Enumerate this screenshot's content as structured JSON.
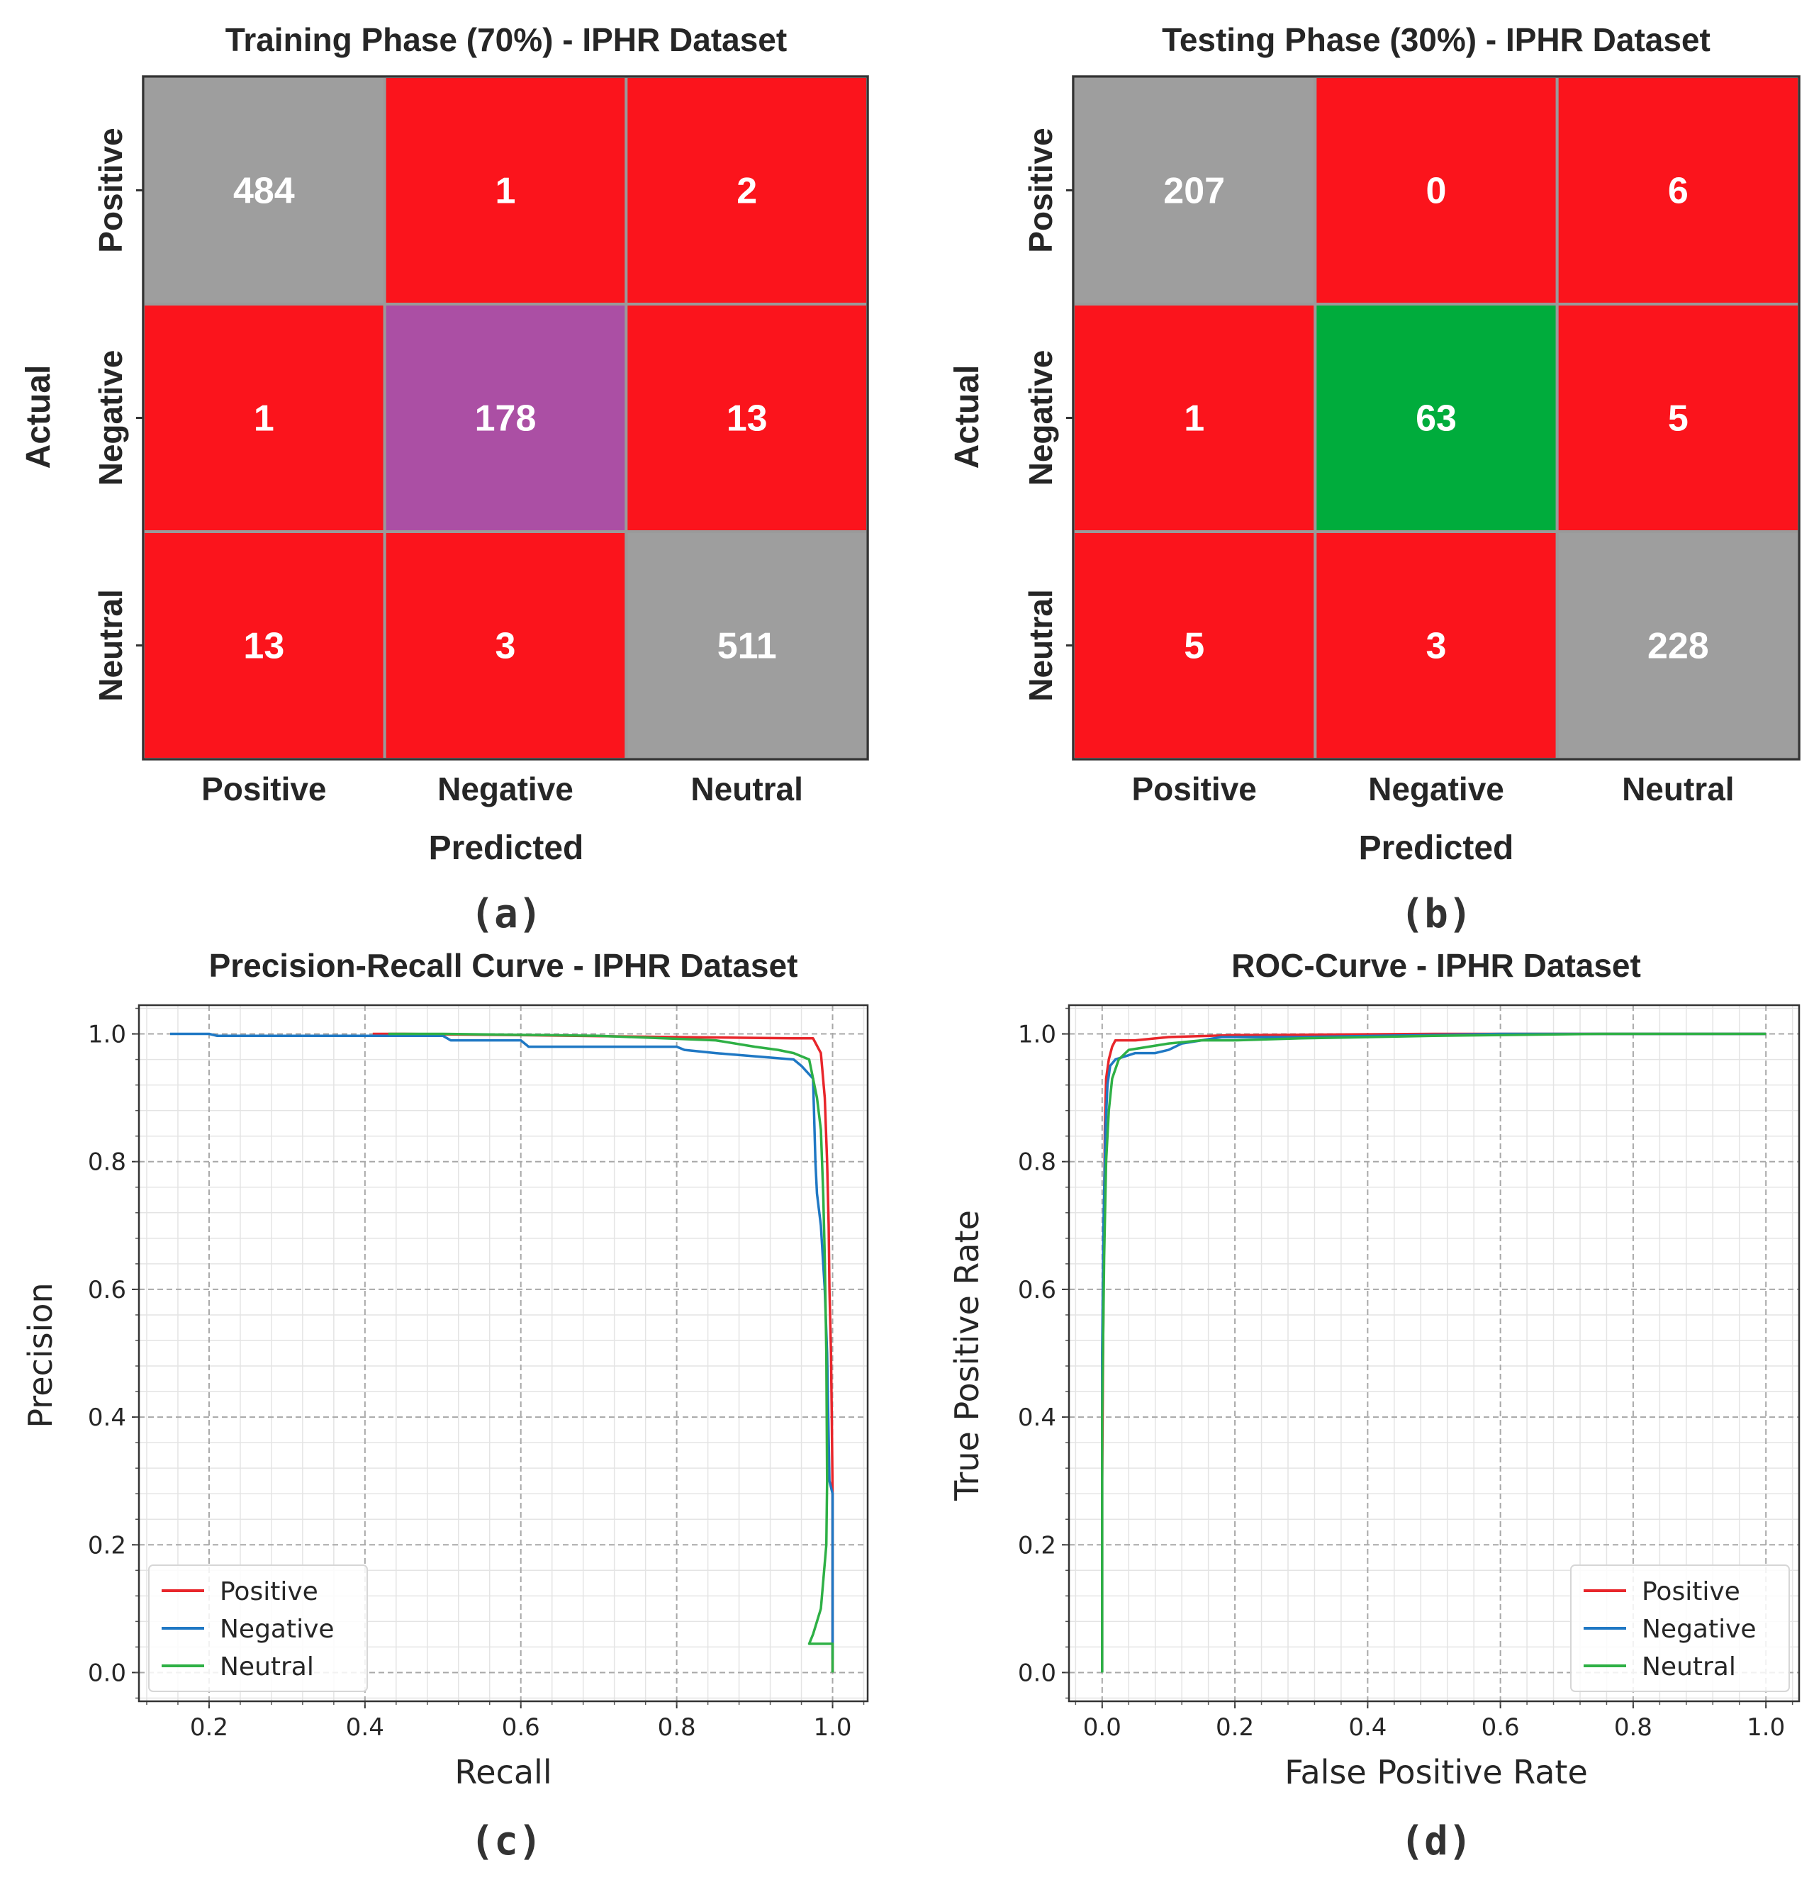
{
  "chart_data": [
    {
      "type": "heatmap",
      "panel_label": "(a)",
      "title": "Training Phase (70%) - IPHR Dataset",
      "xlabel": "Predicted",
      "ylabel": "Actual",
      "x_categories": [
        "Positive",
        "Negative",
        "Neutral"
      ],
      "y_categories": [
        "Positive",
        "Negative",
        "Neutral"
      ],
      "values": [
        [
          484,
          1,
          2
        ],
        [
          1,
          178,
          13
        ],
        [
          13,
          3,
          511
        ]
      ],
      "colors": [
        [
          "#9e9e9e",
          "#fb141c",
          "#fb141c"
        ],
        [
          "#fb141c",
          "#ab4fa4",
          "#fb141c"
        ],
        [
          "#fb141c",
          "#fb141c",
          "#9e9e9e"
        ]
      ]
    },
    {
      "type": "heatmap",
      "panel_label": "(b)",
      "title": "Testing Phase (30%) - IPHR Dataset",
      "xlabel": "Predicted",
      "ylabel": "Actual",
      "x_categories": [
        "Positive",
        "Negative",
        "Neutral"
      ],
      "y_categories": [
        "Positive",
        "Negative",
        "Neutral"
      ],
      "values": [
        [
          207,
          0,
          6
        ],
        [
          1,
          63,
          5
        ],
        [
          5,
          3,
          228
        ]
      ],
      "colors": [
        [
          "#9e9e9e",
          "#fb141c",
          "#fb141c"
        ],
        [
          "#fb141c",
          "#00ac3c",
          "#fb141c"
        ],
        [
          "#fb141c",
          "#fb141c",
          "#9e9e9e"
        ]
      ]
    },
    {
      "type": "line",
      "panel_label": "(c)",
      "title": "Precision-Recall Curve - IPHR Dataset",
      "xlabel": "Recall",
      "ylabel": "Precision",
      "xlim": [
        0.11,
        1.045
      ],
      "ylim": [
        -0.045,
        1.045
      ],
      "xticks": [
        "0.2",
        "0.4",
        "0.6",
        "0.8",
        "1.0"
      ],
      "yticks": [
        "0.0",
        "0.2",
        "0.4",
        "0.6",
        "0.8",
        "1.0"
      ],
      "grid": true,
      "legend": "lower left",
      "series": [
        {
          "name": "Positive",
          "color": "#e8262b",
          "x": [
            0.41,
            0.45,
            0.6,
            0.8,
            0.95,
            0.975,
            0.985,
            0.99,
            0.993,
            0.995,
            0.996,
            0.998,
            0.999,
            1.0,
            1.0,
            1.0
          ],
          "y": [
            1.0,
            1.0,
            0.998,
            0.995,
            0.993,
            0.993,
            0.97,
            0.9,
            0.8,
            0.7,
            0.6,
            0.5,
            0.4,
            0.28,
            0.03,
            0.0
          ]
        },
        {
          "name": "Negative",
          "color": "#1f78c4",
          "x": [
            0.15,
            0.2,
            0.21,
            0.5,
            0.51,
            0.6,
            0.61,
            0.8,
            0.81,
            0.85,
            0.9,
            0.95,
            0.96,
            0.975,
            0.978,
            0.98,
            0.985,
            0.99,
            0.993,
            0.996,
            1.0,
            1.0
          ],
          "y": [
            1.0,
            1.0,
            0.997,
            0.997,
            0.99,
            0.99,
            0.98,
            0.98,
            0.975,
            0.97,
            0.965,
            0.96,
            0.95,
            0.93,
            0.8,
            0.75,
            0.7,
            0.6,
            0.5,
            0.3,
            0.28,
            0.02
          ]
        },
        {
          "name": "Neutral",
          "color": "#2eb045",
          "x": [
            0.43,
            0.5,
            0.7,
            0.85,
            0.9,
            0.93,
            0.95,
            0.97,
            0.98,
            0.985,
            0.988,
            0.99,
            0.992,
            0.993,
            0.992,
            0.985,
            0.975,
            0.97,
            1.0,
            1.0
          ],
          "y": [
            1.0,
            1.0,
            0.997,
            0.99,
            0.98,
            0.975,
            0.97,
            0.96,
            0.9,
            0.85,
            0.75,
            0.65,
            0.5,
            0.3,
            0.2,
            0.1,
            0.06,
            0.045,
            0.045,
            0.0
          ]
        }
      ]
    },
    {
      "type": "line",
      "panel_label": "(d)",
      "title": "ROC-Curve - IPHR Dataset",
      "xlabel": "False Positive Rate",
      "ylabel": "True Positive Rate",
      "xlim": [
        -0.05,
        1.05
      ],
      "ylim": [
        -0.045,
        1.045
      ],
      "xticks": [
        "0.0",
        "0.2",
        "0.4",
        "0.6",
        "0.8",
        "1.0"
      ],
      "yticks": [
        "0.0",
        "0.2",
        "0.4",
        "0.6",
        "0.8",
        "1.0"
      ],
      "grid": true,
      "legend": "lower right",
      "series": [
        {
          "name": "Positive",
          "color": "#e8262b",
          "x": [
            0.0,
            0.0,
            0.002,
            0.004,
            0.006,
            0.01,
            0.015,
            0.02,
            0.05,
            0.1,
            0.2,
            0.5,
            1.0
          ],
          "y": [
            0.0,
            0.3,
            0.6,
            0.85,
            0.93,
            0.96,
            0.98,
            0.99,
            0.99,
            0.995,
            0.998,
            1.0,
            1.0
          ]
        },
        {
          "name": "Negative",
          "color": "#1f78c4",
          "x": [
            0.0,
            0.0,
            0.002,
            0.005,
            0.008,
            0.012,
            0.02,
            0.05,
            0.08,
            0.1,
            0.12,
            0.18,
            0.3,
            0.6,
            0.8,
            1.0
          ],
          "y": [
            0.0,
            0.5,
            0.7,
            0.85,
            0.92,
            0.95,
            0.96,
            0.97,
            0.97,
            0.975,
            0.985,
            0.995,
            0.995,
            1.0,
            1.0,
            1.0
          ]
        },
        {
          "name": "Neutral",
          "color": "#2eb045",
          "x": [
            0.0,
            0.0,
            0.003,
            0.006,
            0.01,
            0.015,
            0.025,
            0.04,
            0.07,
            0.1,
            0.15,
            0.2,
            0.3,
            0.5,
            0.75,
            1.0
          ],
          "y": [
            0.0,
            0.4,
            0.65,
            0.8,
            0.88,
            0.93,
            0.96,
            0.975,
            0.98,
            0.985,
            0.99,
            0.99,
            0.993,
            0.997,
            1.0,
            1.0
          ]
        }
      ]
    }
  ]
}
